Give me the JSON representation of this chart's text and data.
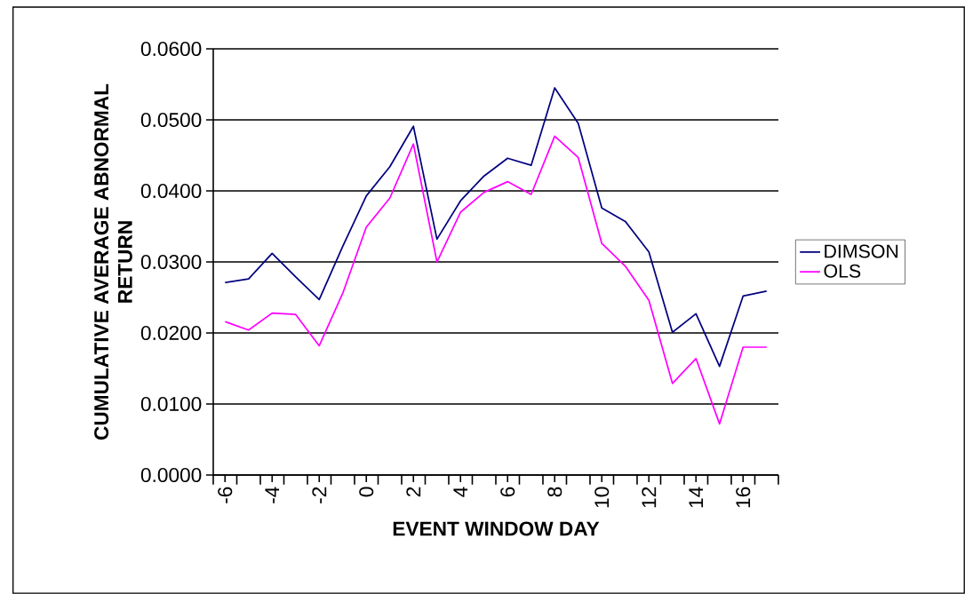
{
  "chart_data": {
    "type": "line",
    "xlabel": "EVENT WINDOW DAY",
    "ylabel": "CUMULATIVE AVERAGE ABNORMAL RETURN",
    "x": [
      -6,
      -5,
      -4,
      -3,
      -2,
      -1,
      0,
      1,
      2,
      3,
      4,
      5,
      6,
      7,
      8,
      9,
      10,
      11,
      12,
      13,
      14,
      15,
      16,
      17
    ],
    "series": [
      {
        "name": "DIMSON",
        "color": "#000080",
        "values": [
          0.0271,
          0.0276,
          0.0312,
          0.0279,
          0.0247,
          0.0322,
          0.0393,
          0.0434,
          0.0491,
          0.0332,
          0.0386,
          0.0421,
          0.0446,
          0.0436,
          0.0545,
          0.0495,
          0.0376,
          0.0357,
          0.0314,
          0.0201,
          0.0227,
          0.0153,
          0.0252,
          0.0259
        ]
      },
      {
        "name": "OLS",
        "color": "#ff00ff",
        "values": [
          0.0216,
          0.0204,
          0.0228,
          0.0226,
          0.0182,
          0.0256,
          0.0349,
          0.039,
          0.0466,
          0.03,
          0.037,
          0.0398,
          0.0413,
          0.0395,
          0.0477,
          0.0447,
          0.0326,
          0.0294,
          0.0246,
          0.0129,
          0.0164,
          0.0072,
          0.018,
          0.018
        ]
      }
    ],
    "xlim": [
      -6.5,
      17.5
    ],
    "xticks": [
      -6,
      -4,
      -2,
      0,
      2,
      4,
      6,
      8,
      10,
      12,
      14,
      16
    ],
    "ylim": [
      0,
      0.06
    ],
    "yticks": [
      {
        "value": 0,
        "label": "0.0000"
      },
      {
        "value": 0.01,
        "label": "0.0100"
      },
      {
        "value": 0.02,
        "label": "0.0200"
      },
      {
        "value": 0.03,
        "label": "0.0300"
      },
      {
        "value": 0.04,
        "label": "0.0400"
      },
      {
        "value": 0.05,
        "label": "0.0500"
      },
      {
        "value": 0.06,
        "label": "0.0600"
      }
    ],
    "grid": "y",
    "legend": "right",
    "marker": "none",
    "line_style": "solid"
  }
}
